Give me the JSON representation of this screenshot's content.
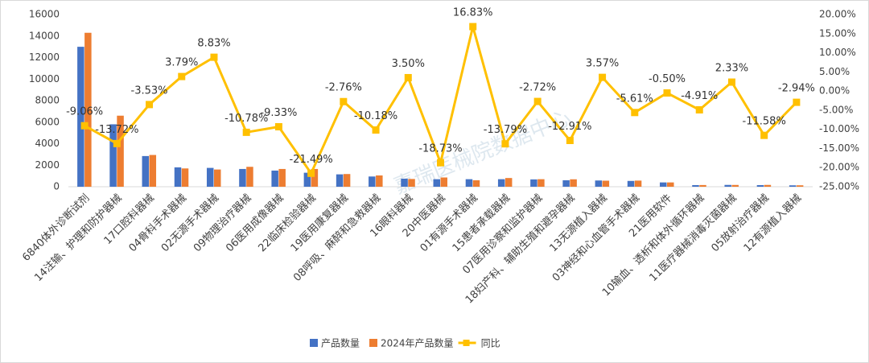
{
  "chart_data": {
    "type": "bar-line",
    "categories": [
      "6840体外诊断试剂",
      "14注输、护理和防护器械",
      "17口腔科器械",
      "04骨科手术器械",
      "02无源手术器械",
      "09物理治疗器械",
      "06医用成像器械",
      "22临床检验器械",
      "19医用康复器械",
      "08呼吸、麻醉和急救器械",
      "16眼科器械",
      "20中医器械",
      "01有源手术器械",
      "15患者承载器械",
      "07医用诊察和监护器械",
      "18妇产科、辅助生殖和避孕器械",
      "13无源植入器械",
      "03神经和心血管手术器械",
      "21医用软件",
      "10输血、透析和体外循环器械",
      "11医疗器械消毒灭菌器械",
      "05放射治疗器械",
      "12有源植入器械"
    ],
    "series": [
      {
        "name": "产品数量",
        "type": "bar",
        "color": "#4472c4",
        "values": [
          13000,
          5800,
          2850,
          1800,
          1750,
          1650,
          1500,
          1300,
          1150,
          950,
          750,
          700,
          700,
          700,
          680,
          600,
          580,
          540,
          400,
          150,
          170,
          150,
          130
        ]
      },
      {
        "name": "2024年产品数量",
        "type": "bar",
        "color": "#ed7d31",
        "values": [
          14300,
          6600,
          2950,
          1700,
          1600,
          1850,
          1650,
          1650,
          1180,
          1050,
          720,
          860,
          600,
          810,
          700,
          690,
          560,
          570,
          400,
          158,
          166,
          170,
          134
        ]
      },
      {
        "name": "同比",
        "type": "line",
        "axis": "y2",
        "color": "#ffc000",
        "values": [
          -9.06,
          -13.72,
          -3.53,
          3.79,
          8.83,
          -10.78,
          -9.33,
          -21.49,
          -2.76,
          -10.18,
          3.5,
          -18.73,
          16.83,
          -13.79,
          -2.72,
          -12.91,
          3.57,
          -5.61,
          -0.5,
          -4.91,
          2.33,
          -11.58,
          -2.94
        ],
        "value_labels": [
          "-9.06%",
          "-13.72%",
          "-3.53%",
          "3.79%",
          "8.83%",
          "-10.78%",
          "-9.33%",
          "-21.49%",
          "-2.76%",
          "-10.18%",
          "3.50%",
          "-18.73%",
          "16.83%",
          "-13.79%",
          "-2.72%",
          "-12.91%",
          "3.57%",
          "-5.61%",
          "-0.50%",
          "-4.91%",
          "2.33%",
          "-11.58%",
          "-2.94%"
        ]
      }
    ],
    "ylim": [
      0,
      16000
    ],
    "yticks": [
      0,
      2000,
      4000,
      6000,
      8000,
      10000,
      12000,
      14000,
      16000
    ],
    "y2lim": [
      -25,
      20
    ],
    "y2ticks": [
      {
        "value": -25,
        "label": "-25.00%"
      },
      {
        "value": -20,
        "label": "-20.00%"
      },
      {
        "value": -15,
        "label": "-15.00%"
      },
      {
        "value": -10,
        "label": "-10.00%"
      },
      {
        "value": -5,
        "label": "-5.00%"
      },
      {
        "value": 0,
        "label": "0.00%"
      },
      {
        "value": 5,
        "label": "5.00%"
      },
      {
        "value": 10,
        "label": "10.00%"
      },
      {
        "value": 15,
        "label": "15.00%"
      },
      {
        "value": 20,
        "label": "20.00%"
      }
    ],
    "grid": false,
    "legend": "bottom",
    "watermark": "嘉瑞医械院数据中心"
  }
}
